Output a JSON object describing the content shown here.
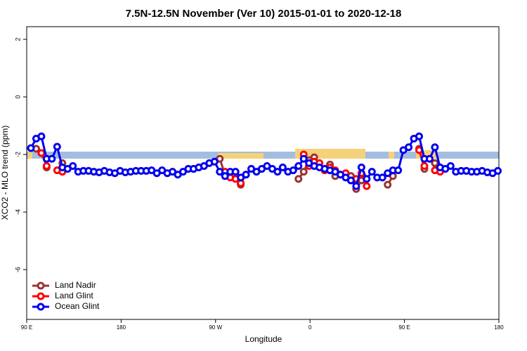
{
  "chart_data": {
    "type": "line",
    "title": "7.5N-12.5N November (Ver 10)   2015-01-01 to 2020-12-18",
    "x_label": "Longitude",
    "y_label": "XCO2 - MLO trend (ppm)",
    "x": [
      94,
      99,
      104,
      109,
      114,
      119,
      124,
      129,
      134,
      139,
      144,
      149,
      154,
      159,
      164,
      169,
      174,
      179,
      184,
      189,
      194,
      199,
      204,
      209,
      214,
      219,
      224,
      229,
      234,
      239,
      244,
      249,
      254,
      259,
      264,
      269,
      274,
      279,
      284,
      289,
      294,
      299,
      304,
      309,
      314,
      319,
      324,
      329,
      334,
      339,
      344,
      349,
      354,
      359,
      364,
      369,
      374,
      379,
      384,
      389,
      394,
      399,
      404,
      409,
      414,
      419,
      424,
      429,
      434,
      439,
      444,
      449,
      454,
      459,
      464,
      469,
      474,
      479,
      484,
      489,
      494,
      499,
      504,
      509,
      514,
      519,
      524,
      529,
      534,
      539
    ],
    "series": [
      {
        "name": "Land Nadir",
        "color": "#993333",
        "values": [
          null,
          -1.8,
          null,
          -2.45,
          null,
          null,
          -2.3,
          null,
          null,
          null,
          null,
          null,
          null,
          null,
          null,
          null,
          null,
          null,
          null,
          null,
          null,
          null,
          null,
          null,
          null,
          null,
          null,
          null,
          null,
          null,
          null,
          null,
          null,
          null,
          null,
          null,
          -2.15,
          -2.7,
          null,
          null,
          -3.05,
          null,
          null,
          null,
          null,
          null,
          null,
          null,
          null,
          null,
          null,
          -2.85,
          -2.6,
          -2.2,
          -2.1,
          null,
          null,
          -2.35,
          -2.75,
          null,
          null,
          -2.75,
          -3.2,
          -2.9,
          null,
          null,
          null,
          null,
          -3.05,
          -2.75,
          null,
          null,
          null,
          null,
          -1.8,
          -2.5,
          null,
          -2.3,
          null,
          null,
          null,
          null,
          null,
          null,
          null,
          null,
          null,
          null,
          null,
          null
        ]
      },
      {
        "name": "Land Glint",
        "color": "#ff0000",
        "values": [
          null,
          null,
          -1.95,
          -2.4,
          null,
          -2.55,
          -2.6,
          null,
          null,
          null,
          null,
          null,
          null,
          null,
          null,
          null,
          null,
          null,
          null,
          null,
          null,
          null,
          null,
          null,
          null,
          null,
          null,
          null,
          null,
          null,
          null,
          null,
          null,
          null,
          null,
          null,
          null,
          -2.6,
          -2.8,
          -2.85,
          -3.0,
          -2.7,
          null,
          null,
          null,
          null,
          null,
          null,
          null,
          null,
          null,
          null,
          -2.0,
          -2.4,
          -2.25,
          -2.3,
          -2.55,
          -2.45,
          -2.55,
          -2.7,
          -2.65,
          -2.9,
          -2.85,
          -2.65,
          -3.1,
          null,
          null,
          null,
          null,
          null,
          null,
          null,
          null,
          null,
          -1.85,
          -2.4,
          null,
          -2.55,
          -2.6,
          null,
          null,
          null,
          null,
          null,
          null,
          null,
          null,
          null,
          null,
          null
        ]
      },
      {
        "name": "Ocean Glint",
        "color": "#0000ee",
        "values": [
          -1.78,
          -1.45,
          -1.37,
          -2.15,
          -2.15,
          -1.73,
          -2.45,
          -2.5,
          -2.4,
          -2.6,
          -2.57,
          -2.57,
          -2.6,
          -2.62,
          -2.57,
          -2.62,
          -2.65,
          -2.57,
          -2.62,
          -2.6,
          -2.57,
          -2.57,
          -2.57,
          -2.55,
          -2.65,
          -2.55,
          -2.65,
          -2.6,
          -2.7,
          -2.6,
          -2.5,
          -2.5,
          -2.45,
          -2.4,
          -2.3,
          -2.25,
          -2.6,
          -2.75,
          -2.6,
          -2.6,
          -2.8,
          -2.7,
          -2.5,
          -2.6,
          -2.5,
          -2.4,
          -2.5,
          -2.6,
          -2.45,
          -2.6,
          -2.55,
          -2.4,
          -2.15,
          -2.3,
          -2.4,
          -2.45,
          -2.5,
          -2.55,
          -2.6,
          -2.7,
          -2.8,
          -2.9,
          -3.1,
          -2.45,
          -2.85,
          -2.6,
          -2.8,
          -2.8,
          -2.65,
          -2.55,
          -2.55,
          -1.85,
          -1.75,
          -1.45,
          -1.37,
          -2.15,
          -2.15,
          -1.75,
          -2.45,
          -2.5,
          -2.4,
          -2.6,
          -2.57,
          -2.57,
          -2.6,
          -2.6,
          -2.57,
          -2.62,
          -2.65,
          -2.57
        ]
      }
    ],
    "xlim": [
      90,
      540
    ],
    "xticks": [
      {
        "value": 90,
        "label": "90 E"
      },
      180,
      {
        "value": 270,
        "label": "90 W"
      },
      {
        "value": 360,
        "label": "0"
      },
      {
        "value": 450,
        "label": "90 E"
      },
      {
        "value": 540,
        "label": "180"
      }
    ],
    "ylim": [
      -7.73,
      2.44
    ],
    "yticks": [
      2,
      0,
      -2,
      -4,
      -6
    ],
    "legend": "bottom-left",
    "grid": false
  }
}
